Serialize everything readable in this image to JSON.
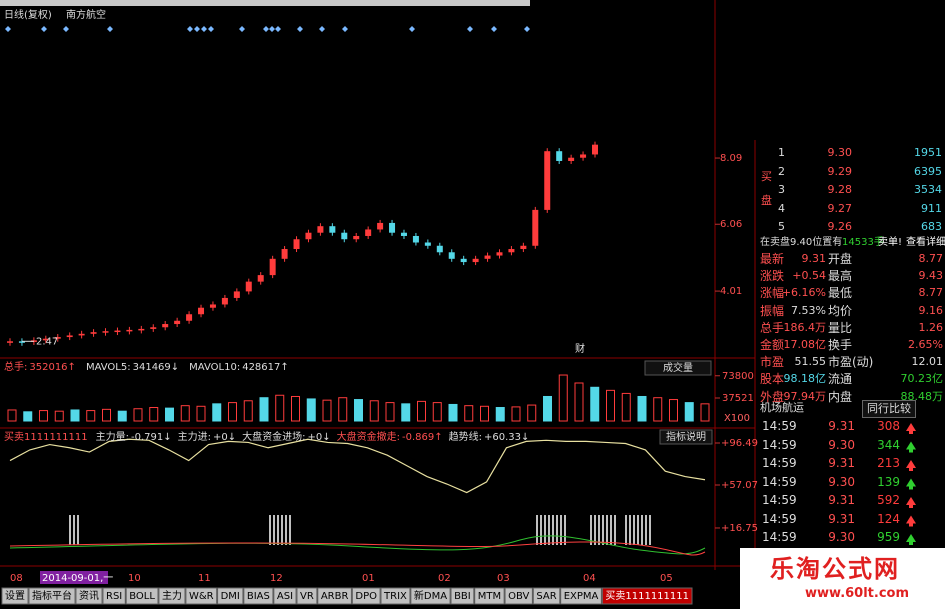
{
  "header": {
    "title": "日线(复权)",
    "stock": "南方航空"
  },
  "price_chart": {
    "type": "candlestick",
    "closes": [
      2.47,
      2.45,
      2.5,
      2.55,
      2.6,
      2.65,
      2.7,
      2.75,
      2.78,
      2.8,
      2.82,
      2.85,
      2.9,
      3.0,
      3.1,
      3.3,
      3.5,
      3.6,
      3.8,
      4.0,
      4.3,
      4.5,
      5.0,
      5.3,
      5.6,
      5.8,
      6.0,
      5.8,
      5.6,
      5.7,
      5.9,
      6.1,
      5.8,
      5.7,
      5.5,
      5.4,
      5.2,
      5.0,
      4.9,
      5.0,
      5.1,
      5.2,
      5.3,
      5.4,
      6.5,
      8.3,
      8.0,
      8.1,
      8.2,
      8.5
    ],
    "ylim": [
      2.05,
      12.63
    ],
    "yticks": [
      4.01,
      6.06,
      8.09
    ],
    "low_mark": 2.47,
    "note": "财",
    "up_color": "#ff3c3c",
    "down_color": "#54d8e8"
  },
  "volume": {
    "type": "bar",
    "legend": [
      {
        "name": "总手:",
        "value": "352016↑"
      },
      {
        "name": "MAVOL5:",
        "value": "341469↓"
      },
      {
        "name": "MAVOL10:",
        "value": "428617↑"
      }
    ],
    "values": [
      18000,
      15000,
      17000,
      16000,
      18000,
      17000,
      19000,
      16000,
      20000,
      22000,
      21000,
      25000,
      24000,
      28000,
      30000,
      33000,
      38000,
      42000,
      40000,
      36000,
      34000,
      38000,
      35000,
      33000,
      30000,
      28000,
      32000,
      30000,
      27000,
      25000,
      24000,
      22000,
      23000,
      26000,
      40000,
      75000,
      62000,
      55000,
      50000,
      45000,
      40000,
      38000,
      35000,
      30000,
      28000
    ],
    "ylim": [
      0,
      96250
    ],
    "yticks": [
      37521,
      73800
    ],
    "unit": "X100",
    "button": "成交量"
  },
  "indicator": {
    "type": "line",
    "legend": [
      {
        "name": "买卖1111111111",
        "value": ""
      },
      {
        "name": "主力量:",
        "value": "-0.791↓"
      },
      {
        "name": "主力进:",
        "value": "+0↓"
      },
      {
        "name": "大盘资金进场:",
        "value": "+0↓"
      },
      {
        "name": "大盘资金撤走:",
        "value": "-0.869↑"
      },
      {
        "name": "趋势线:",
        "value": "+60.33↓"
      }
    ],
    "values": [
      80,
      90,
      95,
      92,
      88,
      98,
      100,
      99,
      90,
      80,
      95,
      98,
      97,
      92,
      96,
      100,
      97,
      96,
      92,
      85,
      75,
      65,
      58,
      50,
      60,
      92,
      98,
      99,
      98,
      98,
      97,
      96,
      90,
      70,
      65,
      62
    ],
    "ylim": [
      -13.3,
      106.8
    ],
    "yticks": [
      {
        "value": 96.49,
        "label": "+96.49"
      },
      {
        "value": 57.07,
        "label": "+57.07"
      },
      {
        "value": 16.75,
        "label": "+16.75"
      }
    ],
    "color": "#e8e0a0",
    "button": "指标说明"
  },
  "xaxis": {
    "labels": [
      "08",
      "2014-09-01,一",
      "10",
      "11",
      "12",
      "01",
      "02",
      "03",
      "04",
      "05"
    ]
  },
  "order_book": {
    "side": "买盘",
    "rows": [
      [
        "1",
        "9.30",
        "1951"
      ],
      [
        "2",
        "9.29",
        "6395"
      ],
      [
        "3",
        "9.28",
        "3534"
      ],
      [
        "4",
        "9.27",
        "911"
      ],
      [
        "5",
        "9.26",
        "683"
      ]
    ],
    "note": "在卖盘9.40位置有",
    "note_qty": "14533手",
    "note_alert": "卖单!",
    "note_link": "查看详细"
  },
  "quotes": [
    [
      "最新",
      "9.31",
      "开盘",
      "8.77"
    ],
    [
      "涨跌",
      "+0.54",
      "最高",
      "9.43"
    ],
    [
      "涨幅",
      "+6.16%",
      "最低",
      "8.77"
    ],
    [
      "振幅",
      "7.53%",
      "均价",
      "9.16"
    ],
    [
      "总手",
      "186.4万",
      "量比",
      "1.26"
    ],
    [
      "金额",
      "17.08亿",
      "换手",
      "2.65%"
    ],
    [
      "市盈",
      "51.55",
      "市盈(动)",
      "12.01"
    ],
    [
      "股本",
      "98.18亿",
      "流通",
      "70.23亿"
    ],
    [
      "外盘",
      "97.94万",
      "内盘",
      "88.48万"
    ]
  ],
  "sector": {
    "name": "机场航运",
    "button": "同行比较"
  },
  "trades": {
    "rows": [
      [
        "14:59",
        "9.31",
        "308"
      ],
      [
        "14:59",
        "9.30",
        "344"
      ],
      [
        "14:59",
        "9.31",
        "213"
      ],
      [
        "14:59",
        "9.30",
        "139"
      ],
      [
        "14:59",
        "9.31",
        "592"
      ],
      [
        "14:59",
        "9.31",
        "124"
      ],
      [
        "14:59",
        "9.30",
        "959"
      ]
    ],
    "colors": [
      "#ff3c3c",
      "#30d030",
      "#ff3c3c",
      "#30d030",
      "#ff3c3c",
      "#ff3c3c",
      "#30d030"
    ]
  },
  "tabs": [
    "设置",
    "指标平台",
    "资讯",
    "RSI",
    "BOLL",
    "主力",
    "W&R",
    "DMI",
    "BIAS",
    "ASI",
    "VR",
    "ARBR",
    "DPO",
    "TRIX",
    "新DMA",
    "BBI",
    "MTM",
    "OBV",
    "SAR",
    "EXPMA",
    "买卖1111111111"
  ],
  "watermark": {
    "name": "乐淘公式网",
    "url": "www.60lt.com"
  }
}
